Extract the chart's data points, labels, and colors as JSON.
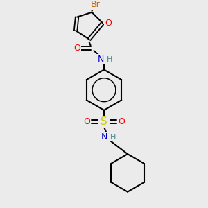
{
  "bg_color": "#ebebeb",
  "bond_color": "#000000",
  "atom_colors": {
    "N": "#0000cc",
    "O": "#ff0000",
    "S": "#cccc00",
    "Br": "#cc6600",
    "H_N": "#448888",
    "C": "#000000"
  },
  "figsize": [
    3.0,
    3.0
  ],
  "dpi": 100
}
